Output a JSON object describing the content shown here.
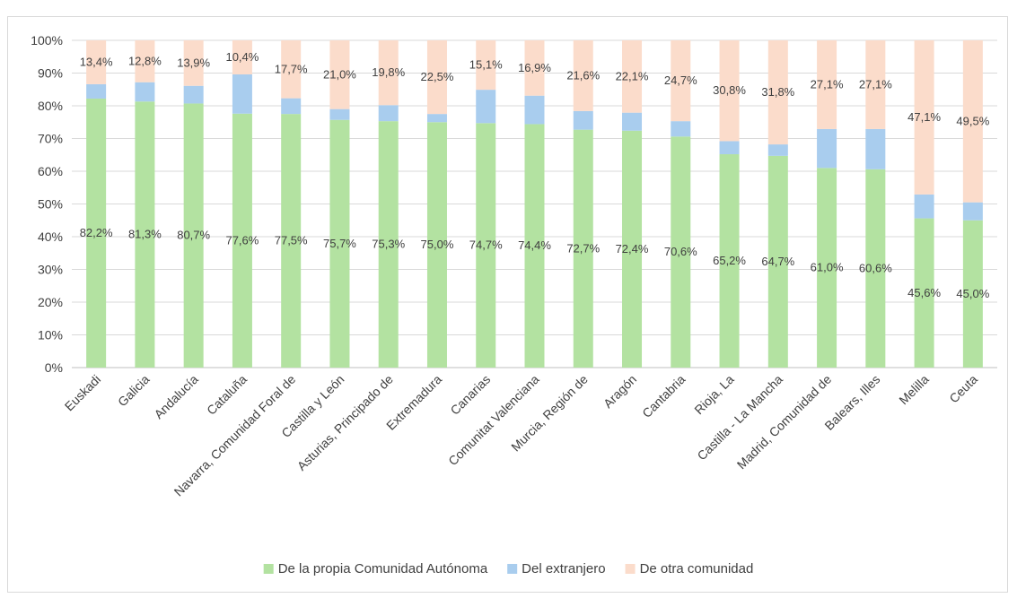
{
  "chart_data": {
    "type": "bar",
    "stacked": true,
    "percent": true,
    "categories": [
      "Euskadi",
      "Galicia",
      "Andalucía",
      "Cataluña",
      "Navarra, Comunidad Foral de",
      "Castilla y León",
      "Asturias, Principado de",
      "Extremadura",
      "Canarias",
      "Comunitat Valenciana",
      "Murcia, Región de",
      "Aragón",
      "Cantabria",
      "Rioja, La",
      "Castilla - La Mancha",
      "Madrid, Comunidad de",
      "Balears, Illes",
      "Melilla",
      "Ceuta"
    ],
    "series": [
      {
        "name": "De la propia Comunidad Autónoma",
        "color": "#b3e2a1",
        "values": [
          82.2,
          81.3,
          80.7,
          77.6,
          77.5,
          75.7,
          75.3,
          75.0,
          74.7,
          74.4,
          72.7,
          72.4,
          70.6,
          65.2,
          64.7,
          61.0,
          60.6,
          45.6,
          45.0
        ],
        "labels": [
          "82,2%",
          "81,3%",
          "80,7%",
          "77,6%",
          "77,5%",
          "75,7%",
          "75,3%",
          "75,0%",
          "74,7%",
          "74,4%",
          "72,7%",
          "72,4%",
          "70,6%",
          "65,2%",
          "64,7%",
          "61,0%",
          "60,6%",
          "45,6%",
          "45,0%"
        ]
      },
      {
        "name": "Del extranjero",
        "color": "#a9cdee",
        "values": [
          4.4,
          5.9,
          5.4,
          12.0,
          4.8,
          3.3,
          4.9,
          2.5,
          10.2,
          8.7,
          5.7,
          5.5,
          4.7,
          4.0,
          3.5,
          11.9,
          12.3,
          7.3,
          5.5
        ]
      },
      {
        "name": "De otra comunidad",
        "color": "#fbdccb",
        "values": [
          13.4,
          12.8,
          13.9,
          10.4,
          17.7,
          21.0,
          19.8,
          22.5,
          15.1,
          16.9,
          21.6,
          22.1,
          24.7,
          30.8,
          31.8,
          27.1,
          27.1,
          47.1,
          49.5
        ],
        "labels": [
          "13,4%",
          "12,8%",
          "13,9%",
          "10,4%",
          "17,7%",
          "21,0%",
          "19,8%",
          "22,5%",
          "15,1%",
          "16,9%",
          "21,6%",
          "22,1%",
          "24,7%",
          "30,8%",
          "31,8%",
          "27,1%",
          "27,1%",
          "47,1%",
          "49,5%"
        ]
      }
    ],
    "y_ticks": [
      "0%",
      "10%",
      "20%",
      "30%",
      "40%",
      "50%",
      "60%",
      "70%",
      "80%",
      "90%",
      "100%"
    ],
    "ylim": [
      0,
      100
    ],
    "grid": true,
    "legend": "bottom",
    "xlabel": "",
    "ylabel": "",
    "title": ""
  }
}
